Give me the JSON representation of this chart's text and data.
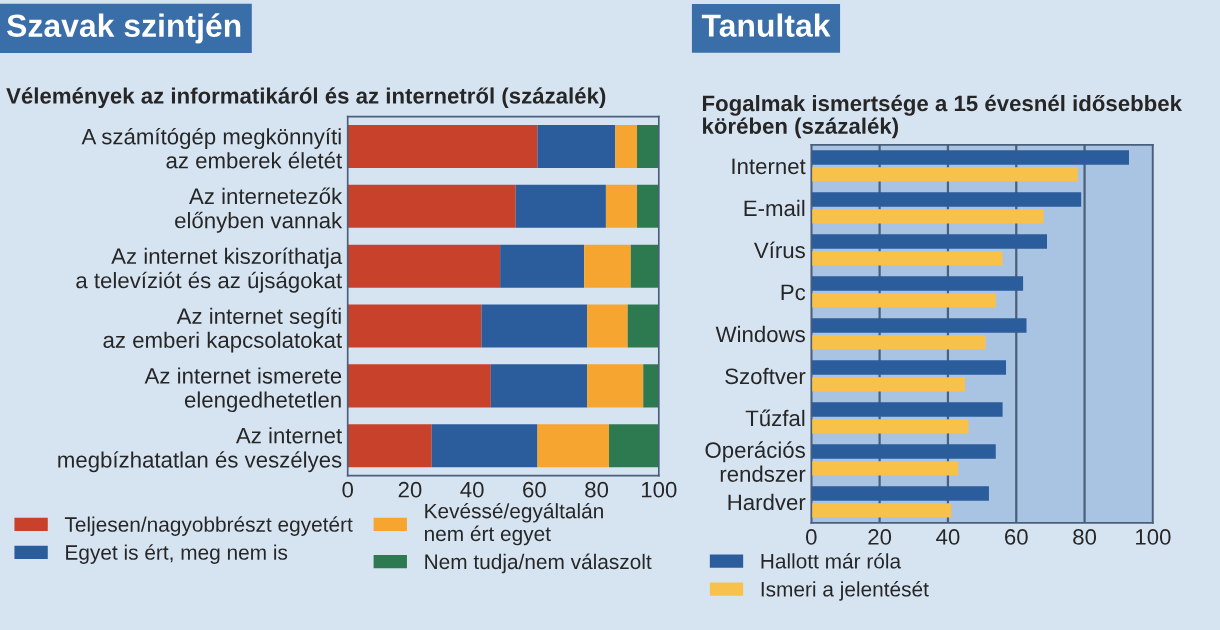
{
  "chart_data": [
    {
      "type": "bar",
      "orientation": "horizontal",
      "stacked": true,
      "title": "Szavak szintjén",
      "subtitle": "Vélemények az informatikáról és az internetről (százalék)",
      "categories": [
        "A számítógép megkönnyíti\naz emberek életét",
        "Az internetezők\nelőnyben vannak",
        "Az internet kiszoríthatja\na televíziót és az újságokat",
        "Az internet segíti\naz emberi kapcsolatokat",
        "Az internet ismerete\nelengedhetetlen",
        "Az internet\nmegbízhatatlan és veszélyes"
      ],
      "series": [
        {
          "name": "Teljesen/nagyobbrészt egyetért",
          "color": "#c8412b",
          "values": [
            61,
            54,
            49,
            43,
            46,
            27
          ]
        },
        {
          "name": "Egyet is ért, meg nem is",
          "color": "#2b5d9c",
          "values": [
            25,
            29,
            27,
            34,
            31,
            34
          ]
        },
        {
          "name": "Kevéssé/egyáltalán\nnem ért egyet",
          "color": "#f6a630",
          "values": [
            7,
            10,
            15,
            13,
            18,
            23
          ]
        },
        {
          "name": "Nem tudja/nem válaszolt",
          "color": "#2e7a50",
          "values": [
            7,
            7,
            9,
            10,
            5,
            16
          ]
        }
      ],
      "xlim": [
        0,
        100
      ],
      "xticks": [
        0,
        20,
        40,
        60,
        80,
        100
      ],
      "grid": false,
      "legend": "bottom"
    },
    {
      "type": "bar",
      "orientation": "horizontal",
      "title": "Tanultak",
      "subtitle": "Fogalmak ismertsége a 15 évesnél idősebbek\nkörében (százalék)",
      "categories": [
        "Internet",
        "E-mail",
        "Vírus",
        "Pc",
        "Windows",
        "Szoftver",
        "Tűzfal",
        "Operációs\nrendszer",
        "Hardver"
      ],
      "series": [
        {
          "name": "Hallott már róla",
          "color": "#2b5d9c",
          "values": [
            93,
            79,
            69,
            62,
            63,
            57,
            56,
            54,
            52
          ]
        },
        {
          "name": "Ismeri a jelentését",
          "color": "#f8c24a",
          "values": [
            78,
            68,
            56,
            54,
            51,
            45,
            46,
            43,
            41
          ]
        }
      ],
      "xlim": [
        0,
        100
      ],
      "xticks": [
        0,
        20,
        40,
        60,
        80,
        100
      ],
      "grid": "x",
      "legend": "bottom"
    }
  ]
}
